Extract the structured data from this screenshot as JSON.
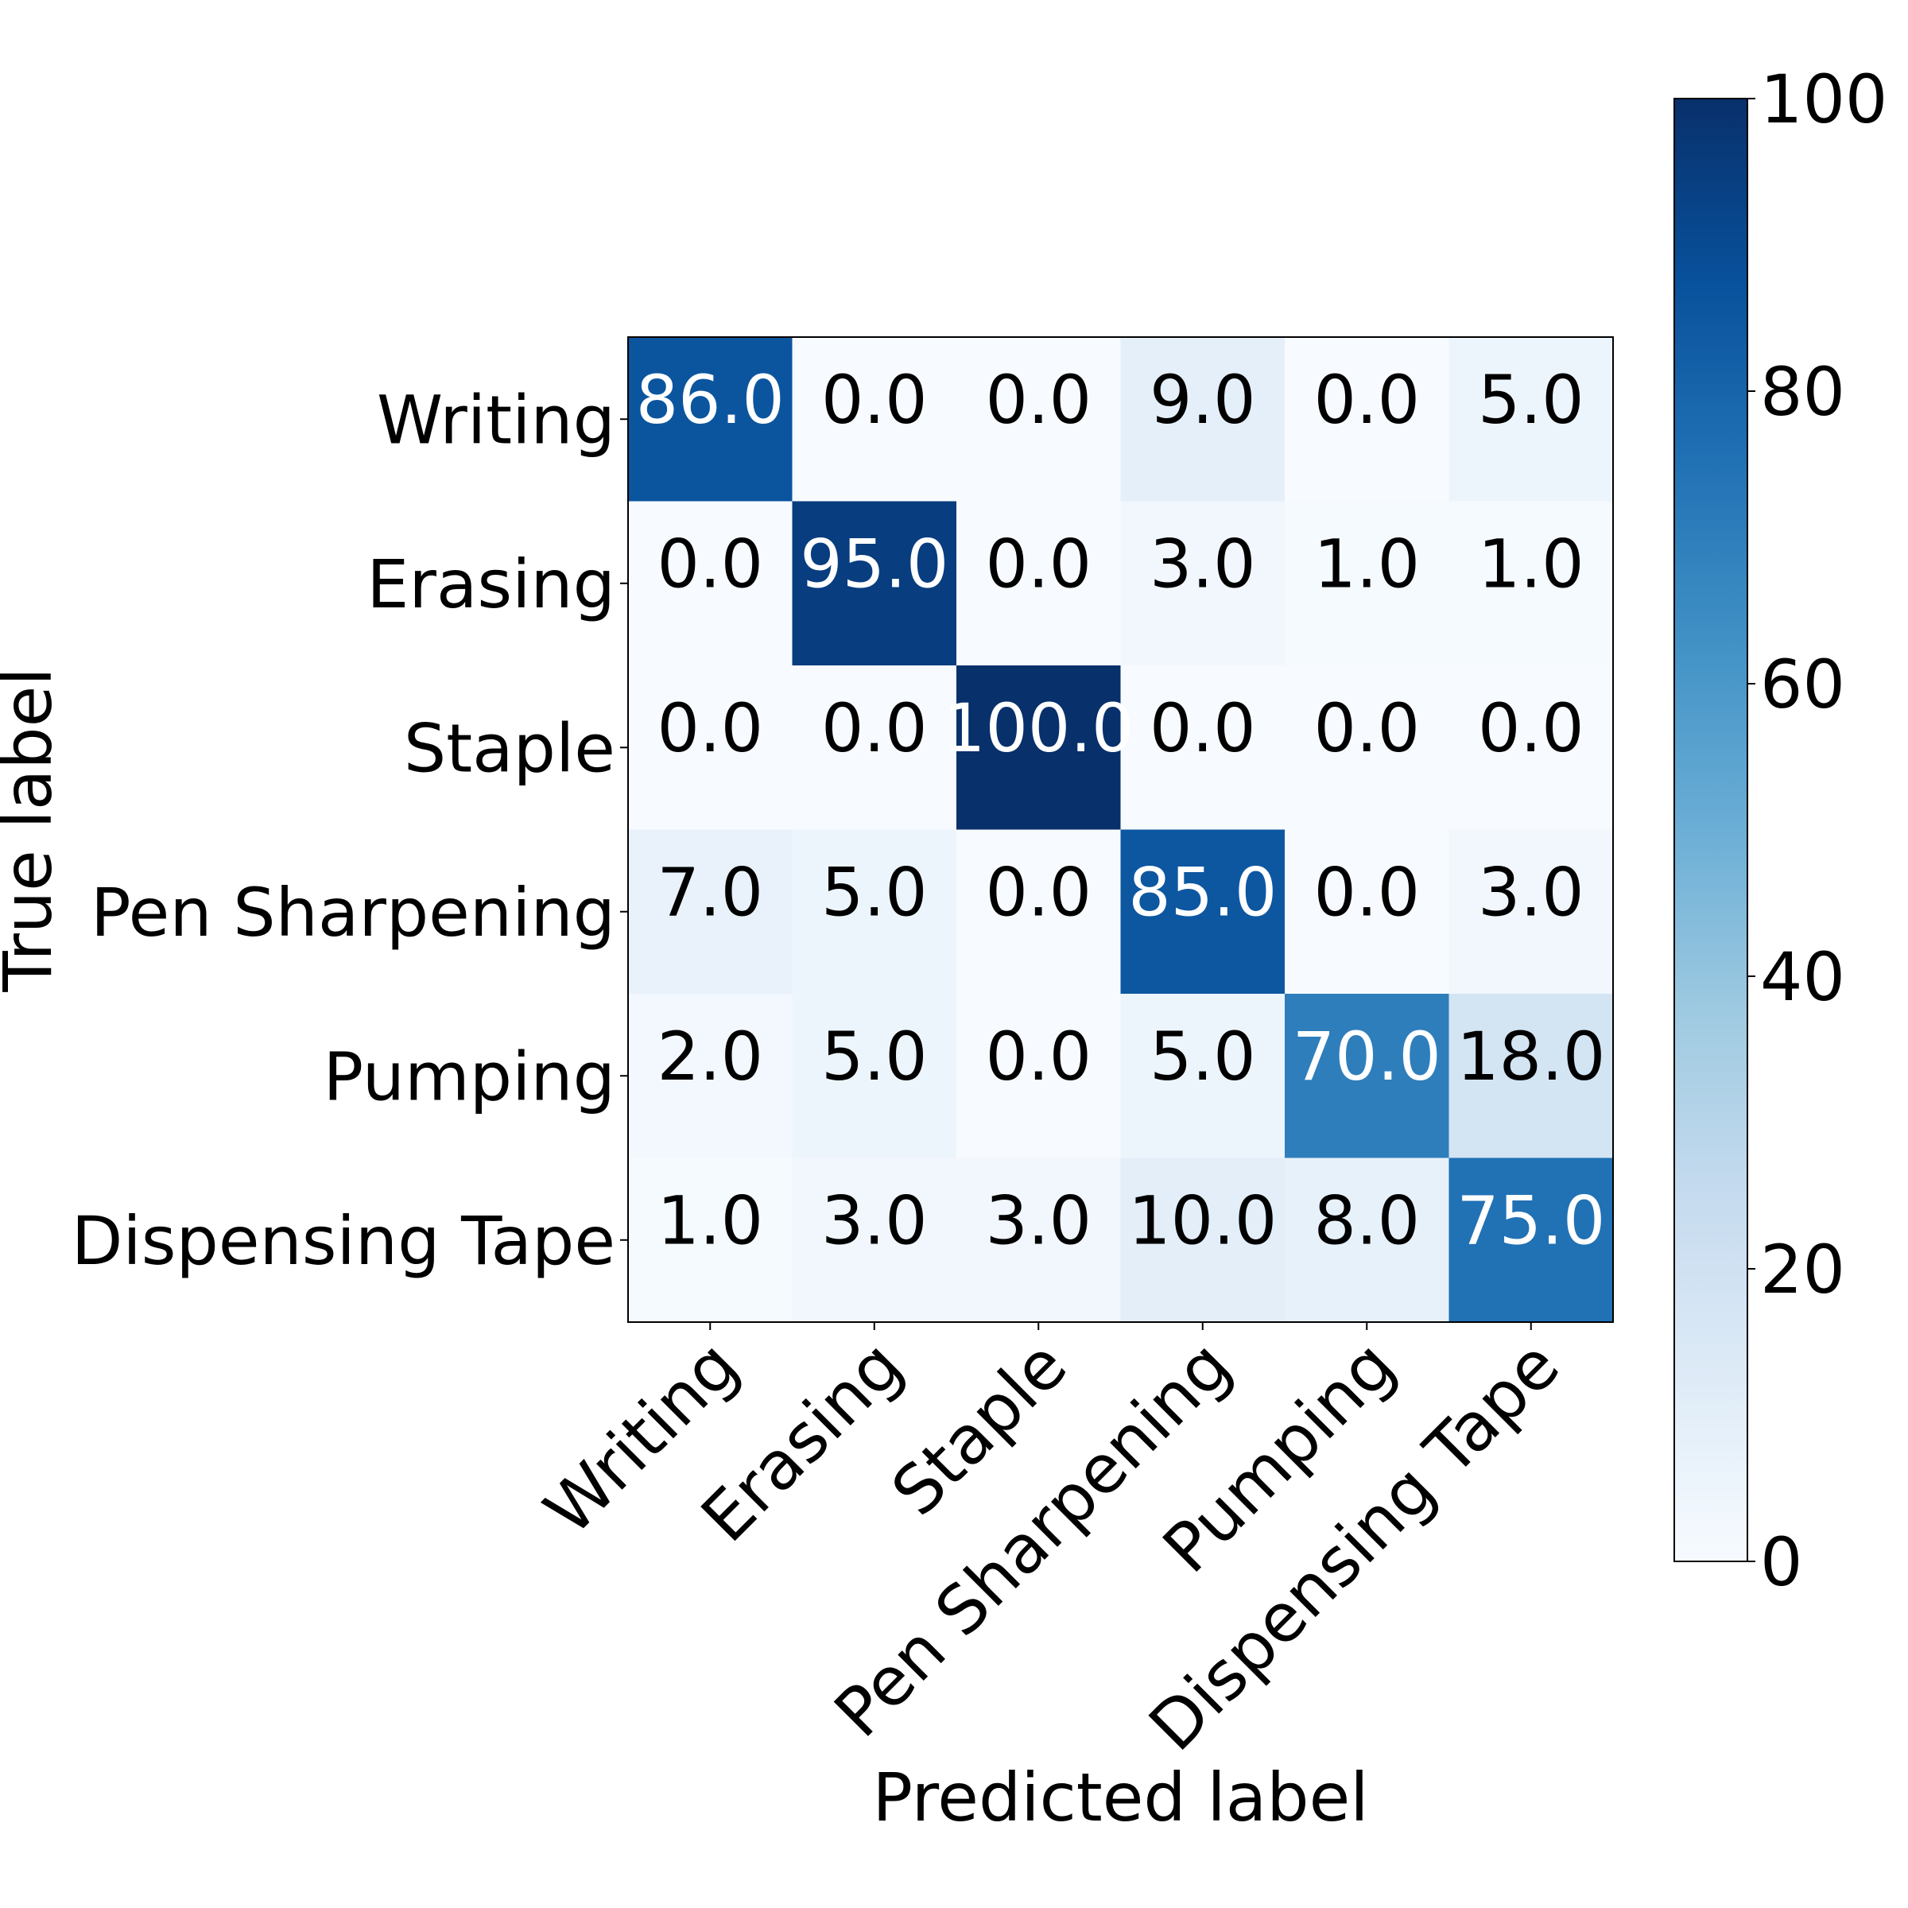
{
  "chart_data": {
    "type": "heatmap",
    "title": "",
    "xlabel": "Predicted label",
    "ylabel": "True label",
    "x_categories": [
      "Writing",
      "Erasing",
      "Staple",
      "Pen Sharpening",
      "Pumping",
      "Dispensing Tape"
    ],
    "y_categories": [
      "Writing",
      "Erasing",
      "Staple",
      "Pen Sharpening",
      "Pumping",
      "Dispensing Tape"
    ],
    "values": [
      [
        86.0,
        0.0,
        0.0,
        9.0,
        0.0,
        5.0
      ],
      [
        0.0,
        95.0,
        0.0,
        3.0,
        1.0,
        1.0
      ],
      [
        0.0,
        0.0,
        100.0,
        0.0,
        0.0,
        0.0
      ],
      [
        7.0,
        5.0,
        0.0,
        85.0,
        0.0,
        3.0
      ],
      [
        2.0,
        5.0,
        0.0,
        5.0,
        70.0,
        18.0
      ],
      [
        1.0,
        3.0,
        3.0,
        10.0,
        8.0,
        75.0
      ]
    ],
    "value_format": "0.0",
    "colormap": "Blues",
    "colorbar": {
      "range": [
        0,
        100
      ],
      "ticks": [
        0,
        20,
        40,
        60,
        80,
        100
      ]
    },
    "grid": false
  }
}
